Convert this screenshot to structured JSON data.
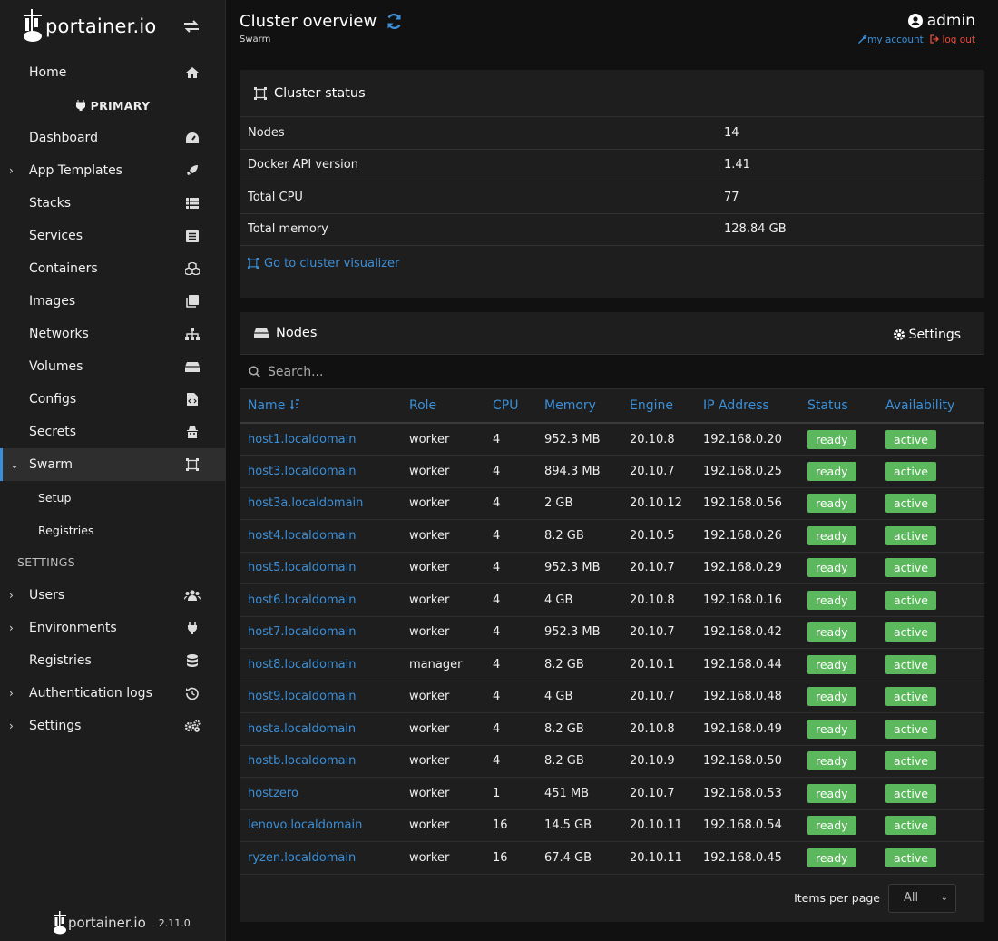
{
  "brand": {
    "logo_text": "portainer.io",
    "version": "2.11.0"
  },
  "sidebar": {
    "home": "Home",
    "environment_heading": "PRIMARY",
    "items": [
      {
        "label": "Dashboard",
        "icon": "dashboard-icon"
      },
      {
        "label": "App Templates",
        "icon": "rocket-icon",
        "expandable": true
      },
      {
        "label": "Stacks",
        "icon": "stacks-icon"
      },
      {
        "label": "Services",
        "icon": "services-icon"
      },
      {
        "label": "Containers",
        "icon": "containers-icon"
      },
      {
        "label": "Images",
        "icon": "images-icon"
      },
      {
        "label": "Networks",
        "icon": "networks-icon"
      },
      {
        "label": "Volumes",
        "icon": "volumes-icon"
      },
      {
        "label": "Configs",
        "icon": "configs-icon"
      },
      {
        "label": "Secrets",
        "icon": "secrets-icon"
      },
      {
        "label": "Swarm",
        "icon": "swarm-icon",
        "expanded": true,
        "active": true
      }
    ],
    "swarm_sub": [
      "Setup",
      "Registries"
    ],
    "settings_heading": "SETTINGS",
    "settings_items": [
      {
        "label": "Users",
        "icon": "users-icon"
      },
      {
        "label": "Environments",
        "icon": "plug-icon"
      },
      {
        "label": "Registries",
        "icon": "database-icon"
      },
      {
        "label": "Authentication logs",
        "icon": "history-icon"
      },
      {
        "label": "Settings",
        "icon": "cogs-icon"
      }
    ]
  },
  "header": {
    "title": "Cluster overview",
    "subtitle": "Swarm",
    "user": "admin",
    "my_account": "my account",
    "log_out": "log out"
  },
  "cluster_status": {
    "title": "Cluster status",
    "rows": [
      {
        "key": "Nodes",
        "value": "14"
      },
      {
        "key": "Docker API version",
        "value": "1.41"
      },
      {
        "key": "Total CPU",
        "value": "77"
      },
      {
        "key": "Total memory",
        "value": "128.84 GB"
      }
    ],
    "visualizer_link": "Go to cluster visualizer"
  },
  "nodes": {
    "title": "Nodes",
    "settings_label": "Settings",
    "search_placeholder": "Search...",
    "columns": [
      "Name",
      "Role",
      "CPU",
      "Memory",
      "Engine",
      "IP Address",
      "Status",
      "Availability"
    ],
    "rows": [
      [
        "host1.localdomain",
        "worker",
        "4",
        "952.3 MB",
        "20.10.8",
        "192.168.0.20",
        "ready",
        "active"
      ],
      [
        "host3.localdomain",
        "worker",
        "4",
        "894.3 MB",
        "20.10.7",
        "192.168.0.25",
        "ready",
        "active"
      ],
      [
        "host3a.localdomain",
        "worker",
        "4",
        "2 GB",
        "20.10.12",
        "192.168.0.56",
        "ready",
        "active"
      ],
      [
        "host4.localdomain",
        "worker",
        "4",
        "8.2 GB",
        "20.10.5",
        "192.168.0.26",
        "ready",
        "active"
      ],
      [
        "host5.localdomain",
        "worker",
        "4",
        "952.3 MB",
        "20.10.7",
        "192.168.0.29",
        "ready",
        "active"
      ],
      [
        "host6.localdomain",
        "worker",
        "4",
        "4 GB",
        "20.10.8",
        "192.168.0.16",
        "ready",
        "active"
      ],
      [
        "host7.localdomain",
        "worker",
        "4",
        "952.3 MB",
        "20.10.7",
        "192.168.0.42",
        "ready",
        "active"
      ],
      [
        "host8.localdomain",
        "manager",
        "4",
        "8.2 GB",
        "20.10.1",
        "192.168.0.44",
        "ready",
        "active"
      ],
      [
        "host9.localdomain",
        "worker",
        "4",
        "4 GB",
        "20.10.7",
        "192.168.0.48",
        "ready",
        "active"
      ],
      [
        "hosta.localdomain",
        "worker",
        "4",
        "8.2 GB",
        "20.10.8",
        "192.168.0.49",
        "ready",
        "active"
      ],
      [
        "hostb.localdomain",
        "worker",
        "4",
        "8.2 GB",
        "20.10.9",
        "192.168.0.50",
        "ready",
        "active"
      ],
      [
        "hostzero",
        "worker",
        "1",
        "451 MB",
        "20.10.7",
        "192.168.0.53",
        "ready",
        "active"
      ],
      [
        "lenovo.localdomain",
        "worker",
        "16",
        "14.5 GB",
        "20.10.11",
        "192.168.0.54",
        "ready",
        "active"
      ],
      [
        "ryzen.localdomain",
        "worker",
        "16",
        "67.4 GB",
        "20.10.11",
        "192.168.0.45",
        "ready",
        "active"
      ]
    ],
    "items_per_page_label": "Items per page",
    "items_per_page_value": "All"
  },
  "colors": {
    "accent": "#3b8fd8",
    "success": "#5cb85c",
    "danger": "#e74c3c"
  }
}
